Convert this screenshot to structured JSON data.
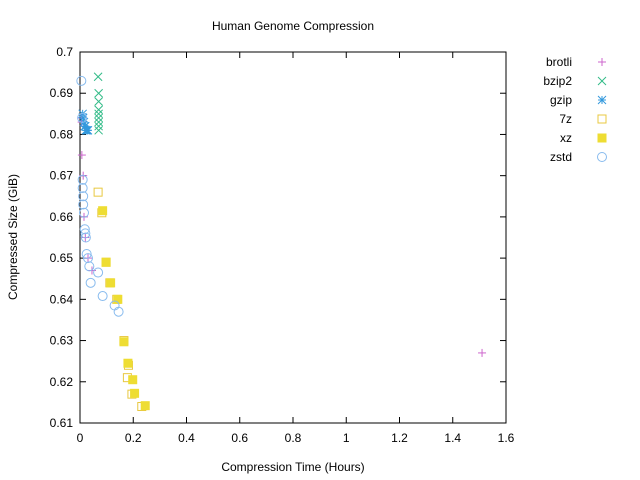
{
  "chart_data": {
    "type": "scatter",
    "title": "Human Genome Compression",
    "xlabel": "Compression Time (Hours)",
    "ylabel": "Compressed Size (GiB)",
    "xlim": [
      0,
      1.6
    ],
    "ylim": [
      0.61,
      0.7
    ],
    "xticks": [
      "0",
      "0.2",
      "0.4",
      "0.6",
      "0.8",
      "1",
      "1.2",
      "1.4",
      "1.6"
    ],
    "yticks": [
      "0.61",
      "0.62",
      "0.63",
      "0.64",
      "0.65",
      "0.66",
      "0.67",
      "0.68",
      "0.69",
      "0.7"
    ],
    "legend_position": "top-right-outside",
    "series": [
      {
        "name": "brotli",
        "marker": "plus",
        "color": "#cc66cc",
        "points": [
          [
            0.005,
            0.684
          ],
          [
            0.006,
            0.683
          ],
          [
            0.007,
            0.675
          ],
          [
            0.012,
            0.67
          ],
          [
            0.015,
            0.66
          ],
          [
            0.02,
            0.655
          ],
          [
            0.03,
            0.65
          ],
          [
            0.045,
            0.647
          ],
          [
            1.51,
            0.627
          ]
        ]
      },
      {
        "name": "bzip2",
        "marker": "cross",
        "color": "#33bb88",
        "points": [
          [
            0.068,
            0.694
          ],
          [
            0.07,
            0.69
          ],
          [
            0.07,
            0.688
          ],
          [
            0.07,
            0.686
          ],
          [
            0.07,
            0.685
          ],
          [
            0.07,
            0.684
          ],
          [
            0.07,
            0.683
          ],
          [
            0.07,
            0.682
          ],
          [
            0.07,
            0.681
          ]
        ]
      },
      {
        "name": "gzip",
        "marker": "star",
        "color": "#3399dd",
        "points": [
          [
            0.01,
            0.685
          ],
          [
            0.012,
            0.684
          ],
          [
            0.015,
            0.683
          ],
          [
            0.018,
            0.682
          ],
          [
            0.02,
            0.682
          ],
          [
            0.022,
            0.681
          ],
          [
            0.025,
            0.681
          ],
          [
            0.028,
            0.681
          ],
          [
            0.03,
            0.681
          ]
        ]
      },
      {
        "name": "7z",
        "marker": "open-square",
        "color": "#e8c840",
        "points": [
          [
            0.068,
            0.666
          ],
          [
            0.082,
            0.661
          ],
          [
            0.098,
            0.649
          ],
          [
            0.112,
            0.644
          ],
          [
            0.138,
            0.64
          ],
          [
            0.165,
            0.63
          ],
          [
            0.178,
            0.621
          ],
          [
            0.182,
            0.624
          ],
          [
            0.195,
            0.617
          ],
          [
            0.232,
            0.614
          ]
        ]
      },
      {
        "name": "xz",
        "marker": "filled-square",
        "color": "#eedd33",
        "points": [
          [
            0.085,
            0.6615
          ],
          [
            0.098,
            0.649
          ],
          [
            0.115,
            0.644
          ],
          [
            0.142,
            0.64
          ],
          [
            0.165,
            0.6297
          ],
          [
            0.18,
            0.6245
          ],
          [
            0.198,
            0.6205
          ],
          [
            0.205,
            0.6172
          ],
          [
            0.245,
            0.6142
          ]
        ]
      },
      {
        "name": "zstd",
        "marker": "circle",
        "color": "#88bbee",
        "points": [
          [
            0.005,
            0.693
          ],
          [
            0.008,
            0.684
          ],
          [
            0.01,
            0.669
          ],
          [
            0.01,
            0.667
          ],
          [
            0.012,
            0.665
          ],
          [
            0.012,
            0.663
          ],
          [
            0.015,
            0.661
          ],
          [
            0.018,
            0.657
          ],
          [
            0.02,
            0.656
          ],
          [
            0.022,
            0.655
          ],
          [
            0.025,
            0.651
          ],
          [
            0.03,
            0.65
          ],
          [
            0.035,
            0.648
          ],
          [
            0.04,
            0.644
          ],
          [
            0.068,
            0.6465
          ],
          [
            0.085,
            0.6408
          ],
          [
            0.13,
            0.6385
          ],
          [
            0.145,
            0.637
          ]
        ]
      }
    ]
  }
}
